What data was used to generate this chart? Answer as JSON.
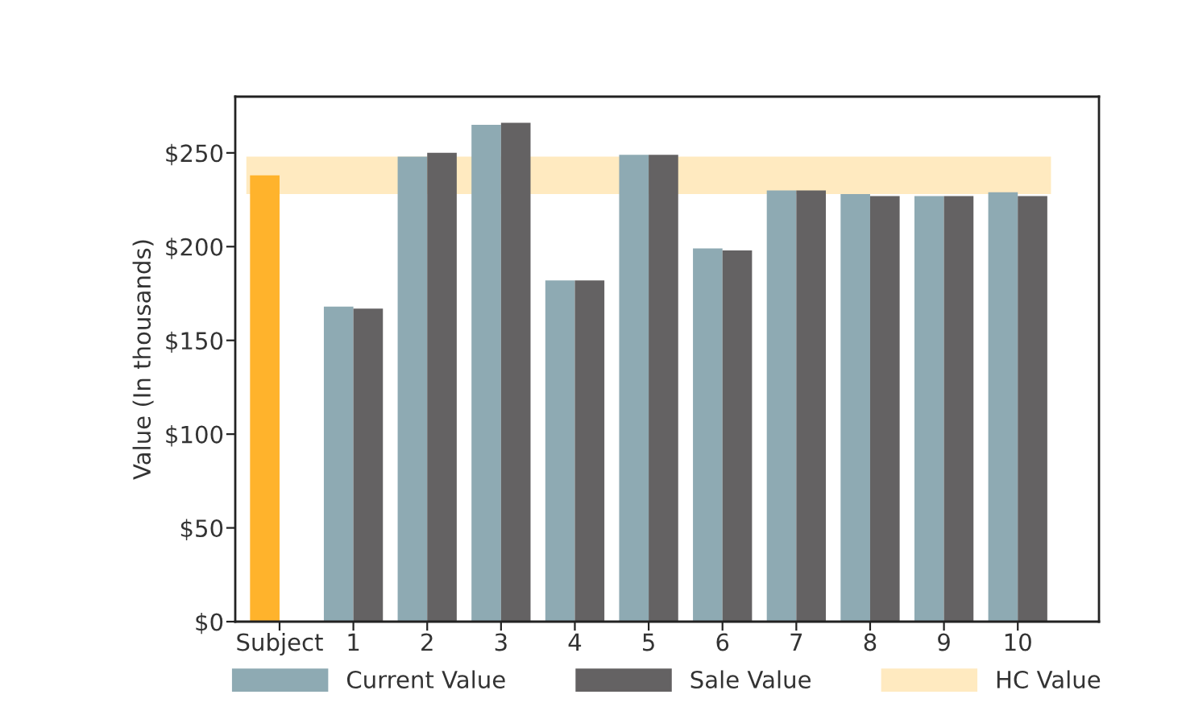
{
  "chart_data": {
    "type": "bar",
    "ylabel": "Value (In thousands)",
    "categories": [
      "Subject",
      "1",
      "2",
      "3",
      "4",
      "5",
      "6",
      "7",
      "8",
      "9",
      "10"
    ],
    "series": [
      {
        "name": "Current Value",
        "color": "#8eaab3",
        "colors": [
          "#ffb32c",
          "#8eaab3",
          "#8eaab3",
          "#8eaab3",
          "#8eaab3",
          "#8eaab3",
          "#8eaab3",
          "#8eaab3",
          "#8eaab3",
          "#8eaab3",
          "#8eaab3"
        ],
        "values": [
          238,
          168,
          248,
          265,
          182,
          249,
          199,
          230,
          228,
          227,
          229
        ]
      },
      {
        "name": "Sale Value",
        "color": "#646263",
        "values": [
          null,
          167,
          250,
          266,
          182,
          249,
          198,
          230,
          227,
          227,
          227
        ]
      }
    ],
    "bands": [
      {
        "axis": "y",
        "from": 228,
        "to": 248,
        "label": "HC Value",
        "color": "#ffeac0"
      }
    ],
    "ylim": [
      0,
      280
    ],
    "yticks": [
      {
        "value": 0,
        "label": "$0"
      },
      {
        "value": 50,
        "label": "$50"
      },
      {
        "value": 100,
        "label": "$100"
      },
      {
        "value": 150,
        "label": "$150"
      },
      {
        "value": 200,
        "label": "$200"
      },
      {
        "value": 250,
        "label": "$250"
      }
    ],
    "grid": false,
    "legend": "bottom"
  }
}
